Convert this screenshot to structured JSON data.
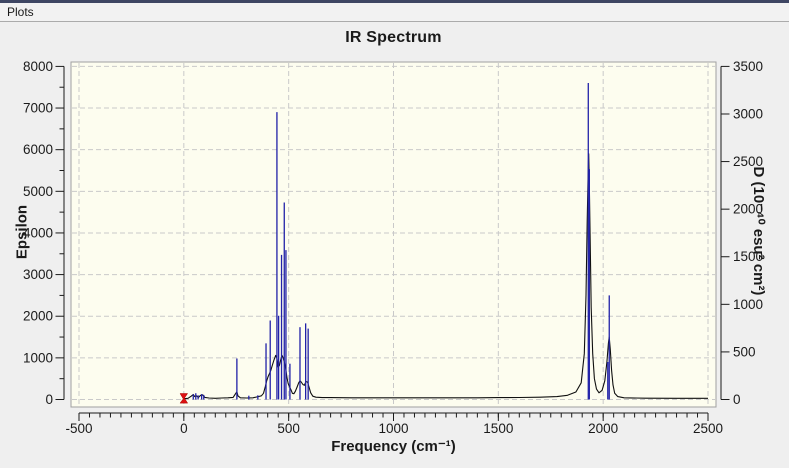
{
  "window": {
    "menu": {
      "plots_label": "Plots"
    }
  },
  "chart_data": {
    "type": "line",
    "title": "IR Spectrum",
    "xlabel": "Frequency (cm⁻¹)",
    "ylabel_left": "Epsilon",
    "ylabel_right": "D (10⁻⁴⁰ esu² cm²)",
    "xlim": [
      -500,
      2500
    ],
    "x_ticks": [
      -500,
      0,
      500,
      1000,
      1500,
      2000,
      2500
    ],
    "x_minor_step": 50,
    "ylim_left": [
      0,
      8000
    ],
    "y_left_ticks": [
      0,
      1000,
      2000,
      3000,
      4000,
      5000,
      6000,
      7000,
      8000
    ],
    "y_left_minor_step": 500,
    "ylim_right": [
      0,
      3500
    ],
    "y_right_ticks": [
      0,
      500,
      1000,
      1500,
      2000,
      2500,
      3000,
      3500
    ],
    "grid": "dashed",
    "legend": "none",
    "colors": {
      "panel_bg": "#fdfdef",
      "grid": "#c9c9c9",
      "frame": "#a0a0a0",
      "axis": "#1a1a1a",
      "envelope": "#101010",
      "sticks": "#2121a8",
      "marker": "#dd1111"
    },
    "series": [
      {
        "name": "Epsilon envelope",
        "axis": "left",
        "style": "line",
        "points": [
          [
            0,
            20
          ],
          [
            20,
            30
          ],
          [
            35,
            80
          ],
          [
            45,
            120
          ],
          [
            52,
            70
          ],
          [
            60,
            90
          ],
          [
            70,
            50
          ],
          [
            80,
            100
          ],
          [
            90,
            110
          ],
          [
            100,
            50
          ],
          [
            120,
            35
          ],
          [
            150,
            30
          ],
          [
            180,
            35
          ],
          [
            210,
            40
          ],
          [
            235,
            50
          ],
          [
            248,
            150
          ],
          [
            253,
            185
          ],
          [
            258,
            90
          ],
          [
            270,
            40
          ],
          [
            300,
            35
          ],
          [
            330,
            40
          ],
          [
            355,
            70
          ],
          [
            370,
            90
          ],
          [
            380,
            150
          ],
          [
            388,
            300
          ],
          [
            395,
            450
          ],
          [
            402,
            550
          ],
          [
            408,
            620
          ],
          [
            415,
            700
          ],
          [
            422,
            820
          ],
          [
            430,
            950
          ],
          [
            438,
            1060
          ],
          [
            444,
            1000
          ],
          [
            450,
            780
          ],
          [
            456,
            820
          ],
          [
            462,
            950
          ],
          [
            468,
            1060
          ],
          [
            474,
            1000
          ],
          [
            480,
            880
          ],
          [
            486,
            740
          ],
          [
            492,
            520
          ],
          [
            498,
            380
          ],
          [
            505,
            300
          ],
          [
            512,
            220
          ],
          [
            518,
            150
          ],
          [
            525,
            140
          ],
          [
            532,
            200
          ],
          [
            540,
            300
          ],
          [
            548,
            400
          ],
          [
            554,
            450
          ],
          [
            560,
            420
          ],
          [
            568,
            360
          ],
          [
            575,
            340
          ],
          [
            582,
            430
          ],
          [
            590,
            420
          ],
          [
            597,
            300
          ],
          [
            605,
            160
          ],
          [
            615,
            80
          ],
          [
            630,
            55
          ],
          [
            660,
            45
          ],
          [
            700,
            45
          ],
          [
            800,
            42
          ],
          [
            1000,
            42
          ],
          [
            1200,
            42
          ],
          [
            1400,
            42
          ],
          [
            1500,
            45
          ],
          [
            1600,
            48
          ],
          [
            1700,
            55
          ],
          [
            1780,
            70
          ],
          [
            1830,
            100
          ],
          [
            1870,
            180
          ],
          [
            1895,
            400
          ],
          [
            1910,
            1100
          ],
          [
            1918,
            2500
          ],
          [
            1924,
            4300
          ],
          [
            1929,
            5600
          ],
          [
            1931,
            5900
          ],
          [
            1934,
            5200
          ],
          [
            1938,
            3800
          ],
          [
            1943,
            2200
          ],
          [
            1950,
            1100
          ],
          [
            1958,
            500
          ],
          [
            1968,
            250
          ],
          [
            1980,
            160
          ],
          [
            1995,
            220
          ],
          [
            2008,
            450
          ],
          [
            2018,
            900
          ],
          [
            2025,
            1350
          ],
          [
            2029,
            1500
          ],
          [
            2034,
            1200
          ],
          [
            2040,
            700
          ],
          [
            2047,
            350
          ],
          [
            2055,
            150
          ],
          [
            2070,
            70
          ],
          [
            2100,
            40
          ],
          [
            2200,
            32
          ],
          [
            2350,
            30
          ],
          [
            2500,
            30
          ]
        ]
      },
      {
        "name": "Dipole strength sticks",
        "axis": "right",
        "style": "stick",
        "points": [
          [
            45,
            55
          ],
          [
            57,
            66
          ],
          [
            68,
            44
          ],
          [
            85,
            57
          ],
          [
            95,
            48
          ],
          [
            253,
            431
          ],
          [
            310,
            40
          ],
          [
            353,
            44
          ],
          [
            392,
            590
          ],
          [
            412,
            830
          ],
          [
            444,
            3020
          ],
          [
            452,
            880
          ],
          [
            466,
            1520
          ],
          [
            479,
            2070
          ],
          [
            487,
            1570
          ],
          [
            506,
            376
          ],
          [
            554,
            760
          ],
          [
            581,
            800
          ],
          [
            593,
            745
          ],
          [
            1929,
            3325
          ],
          [
            1934,
            2420
          ],
          [
            2022,
            394
          ],
          [
            2029,
            1094
          ]
        ]
      }
    ],
    "marker": {
      "x": 0,
      "y": 0
    }
  }
}
